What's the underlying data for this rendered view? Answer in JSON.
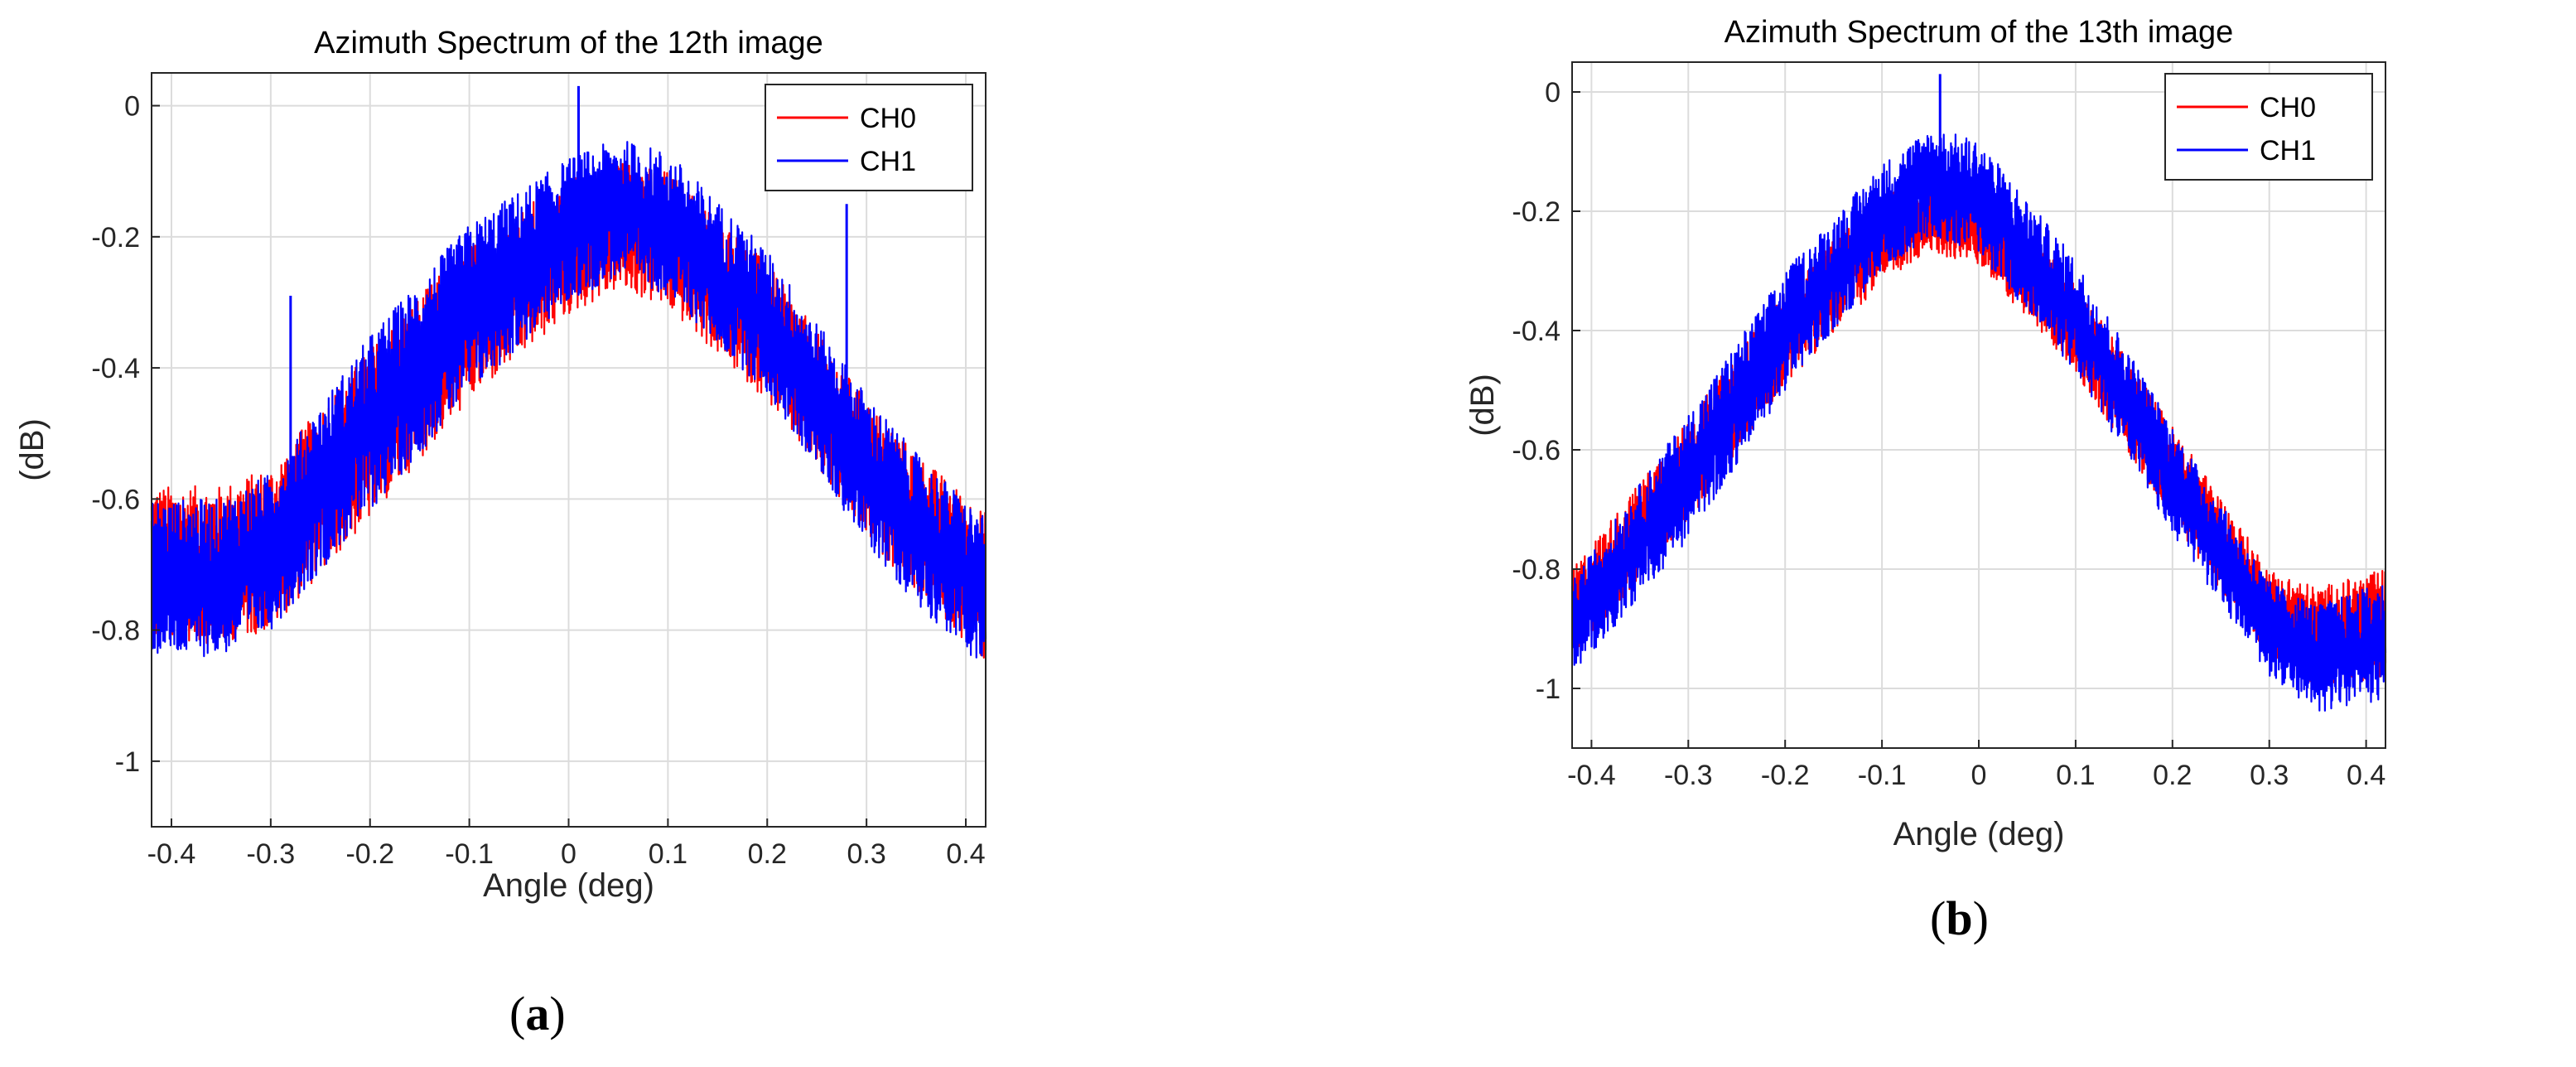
{
  "figure": {
    "panel_labels": [
      "a",
      "b"
    ]
  },
  "chart_data": [
    {
      "type": "line",
      "title": "Azimuth Spectrum of the 12th image",
      "xlabel": "Angle (deg)",
      "ylabel": "(dB)",
      "xlim": [
        -0.42,
        0.42
      ],
      "ylim": [
        -1.1,
        0.05
      ],
      "xticks": [
        -0.4,
        -0.3,
        -0.2,
        -0.1,
        0,
        0.1,
        0.2,
        0.3,
        0.4
      ],
      "xtick_labels": [
        "-0.4",
        "-0.3",
        "-0.2",
        "-0.1",
        "0",
        "0.1",
        "0.2",
        "0.3",
        "0.4"
      ],
      "yticks": [
        0,
        -0.2,
        -0.4,
        -0.6,
        -0.8,
        -1
      ],
      "ytick_labels": [
        "0",
        "-0.2",
        "-0.4",
        "-0.6",
        "-0.8",
        "-1"
      ],
      "grid": true,
      "legend_position": "top-right",
      "series": [
        {
          "name": "CH0",
          "color": "#ff0000",
          "envelope": {
            "x": [
              -0.42,
              -0.35,
              -0.3,
              -0.2,
              -0.1,
              0.0,
              0.05,
              0.1,
              0.2,
              0.3,
              0.35,
              0.42
            ],
            "upper": [
              -0.58,
              -0.58,
              -0.55,
              -0.37,
              -0.21,
              -0.11,
              -0.08,
              -0.1,
              -0.24,
              -0.45,
              -0.53,
              -0.62
            ],
            "lower": [
              -0.82,
              -0.82,
              -0.8,
              -0.63,
              -0.45,
              -0.32,
              -0.28,
              -0.31,
              -0.45,
              -0.66,
              -0.74,
              -0.85
            ]
          }
        },
        {
          "name": "CH1",
          "color": "#0000ff",
          "envelope": {
            "x": [
              -0.42,
              -0.35,
              -0.3,
              -0.2,
              -0.1,
              0.0,
              0.05,
              0.1,
              0.2,
              0.3,
              0.35,
              0.42
            ],
            "upper": [
              -0.6,
              -0.6,
              -0.56,
              -0.35,
              -0.18,
              -0.08,
              -0.05,
              -0.07,
              -0.22,
              -0.44,
              -0.53,
              -0.63
            ],
            "lower": [
              -0.84,
              -0.84,
              -0.8,
              -0.62,
              -0.44,
              -0.3,
              -0.26,
              -0.29,
              -0.44,
              -0.67,
              -0.76,
              -0.86
            ]
          }
        }
      ],
      "spikes": [
        {
          "series": "CH1",
          "x": -0.28,
          "y": -0.29
        },
        {
          "series": "CH1",
          "x": 0.28,
          "y": -0.15
        },
        {
          "series": "CH1",
          "x": 0.01,
          "y": 0.03
        }
      ]
    },
    {
      "type": "line",
      "title": "Azimuth Spectrum of the 13th image",
      "xlabel": "Angle (deg)",
      "ylabel": "(dB)",
      "xlim": [
        -0.42,
        0.42
      ],
      "ylim": [
        -1.1,
        0.05
      ],
      "xticks": [
        -0.4,
        -0.3,
        -0.2,
        -0.1,
        0,
        0.1,
        0.2,
        0.3,
        0.4
      ],
      "xtick_labels": [
        "-0.4",
        "-0.3",
        "-0.2",
        "-0.1",
        "0",
        "0.1",
        "0.2",
        "0.3",
        "0.4"
      ],
      "yticks": [
        0,
        -0.2,
        -0.4,
        -0.6,
        -0.8,
        -1
      ],
      "ytick_labels": [
        "0",
        "-0.2",
        "-0.4",
        "-0.6",
        "-0.8",
        "-1"
      ],
      "grid": true,
      "legend_position": "top-right",
      "series": [
        {
          "name": "CH0",
          "color": "#ff0000",
          "envelope": {
            "x": [
              -0.42,
              -0.3,
              -0.2,
              -0.1,
              -0.05,
              0.0,
              0.1,
              0.2,
              0.3,
              0.35,
              0.42
            ],
            "upper": [
              -0.8,
              -0.55,
              -0.33,
              -0.17,
              -0.13,
              -0.15,
              -0.32,
              -0.56,
              -0.8,
              -0.83,
              -0.8
            ],
            "lower": [
              -0.95,
              -0.72,
              -0.49,
              -0.32,
              -0.27,
              -0.29,
              -0.47,
              -0.72,
              -0.95,
              -1.0,
              -0.98
            ]
          }
        },
        {
          "name": "CH1",
          "color": "#0000ff",
          "envelope": {
            "x": [
              -0.42,
              -0.3,
              -0.2,
              -0.1,
              -0.05,
              0.0,
              0.1,
              0.2,
              0.3,
              0.35,
              0.42
            ],
            "upper": [
              -0.82,
              -0.54,
              -0.3,
              -0.12,
              -0.06,
              -0.08,
              -0.28,
              -0.56,
              -0.82,
              -0.86,
              -0.82
            ],
            "lower": [
              -0.98,
              -0.75,
              -0.5,
              -0.3,
              -0.24,
              -0.27,
              -0.47,
              -0.74,
              -0.98,
              -1.04,
              -1.02
            ]
          }
        }
      ],
      "spikes": [
        {
          "series": "CH1",
          "x": -0.04,
          "y": 0.03
        }
      ]
    }
  ]
}
